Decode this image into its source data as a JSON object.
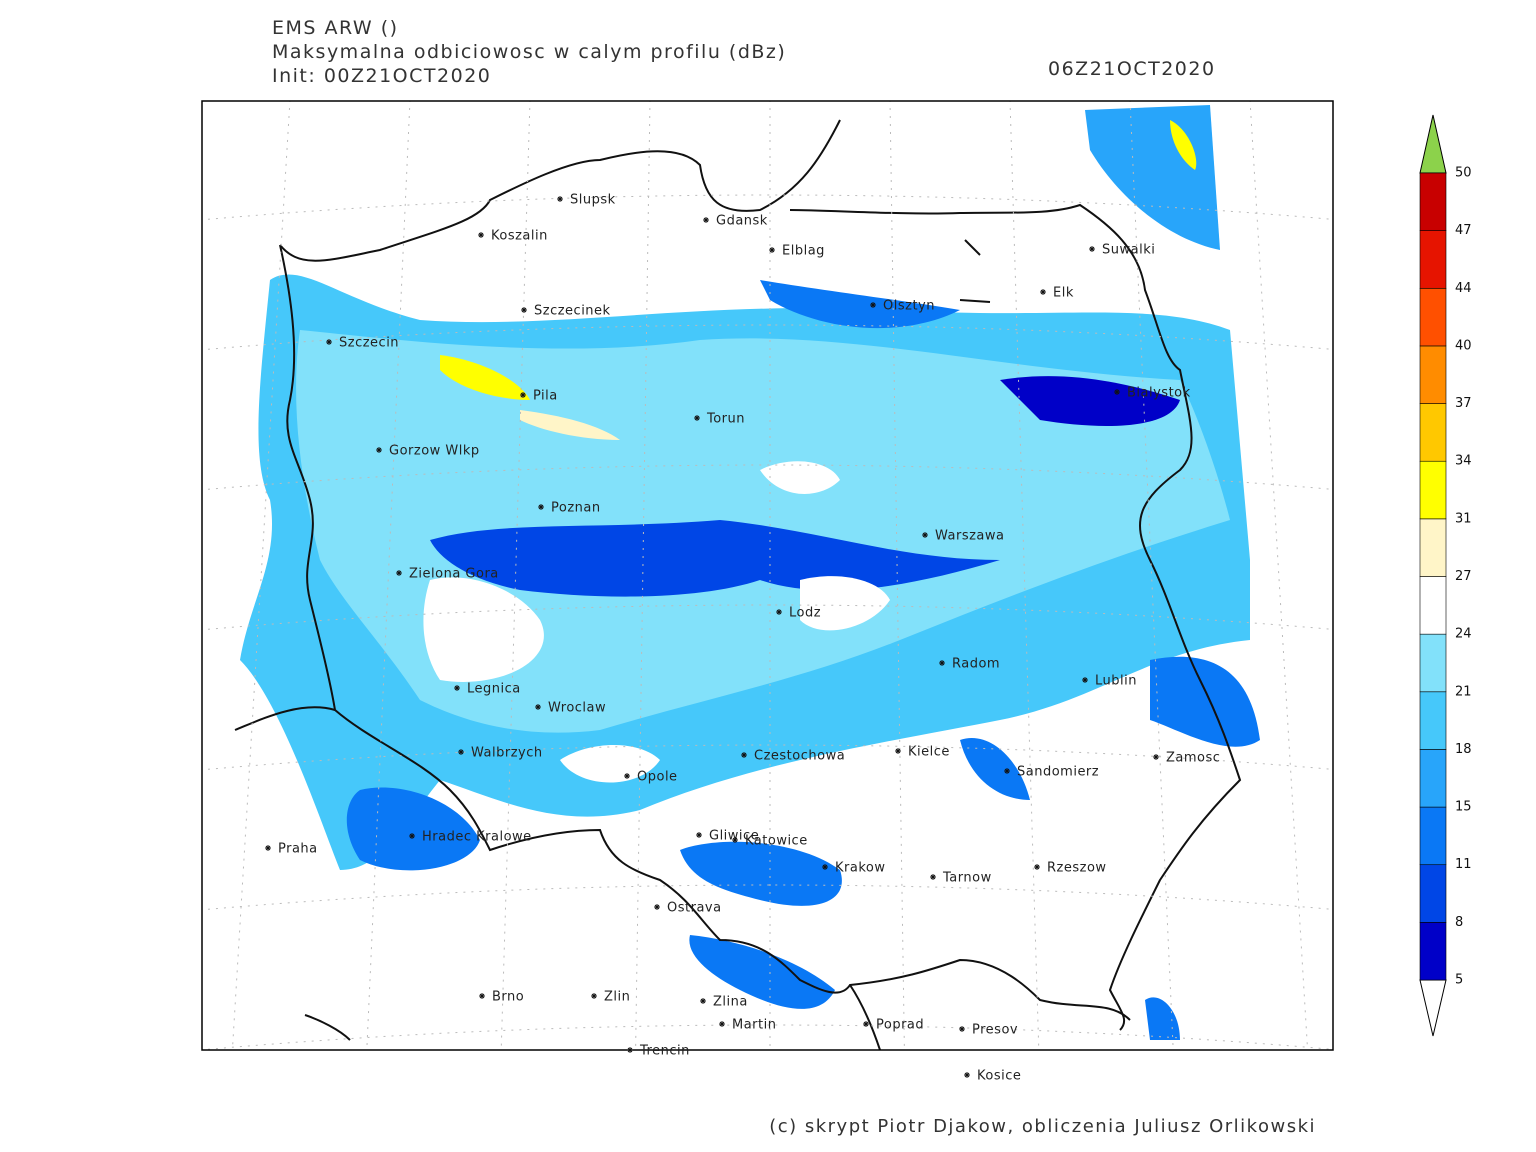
{
  "header": {
    "model": "EMS ARW ()",
    "title": "Maksymalna odbiciowosc w calym profilu (dBz)",
    "init": "Init: 00Z21OCT2020",
    "valid": "06Z21OCT2020"
  },
  "cities": [
    "Slupsk",
    "Koszalin",
    "Gdansk",
    "Elblag",
    "Suwalki",
    "Olsztyn",
    "Elk",
    "Szczecinek",
    "Szczecin",
    "Pila",
    "Torun",
    "Bialystok",
    "Gorzow Wlkp",
    "Poznan",
    "Warszawa",
    "Zielona Gora",
    "Lodz",
    "Radom",
    "Lublin",
    "Legnica",
    "Wroclaw",
    "Walbrzych",
    "Czestochowa",
    "Kielce",
    "Zamosc",
    "Sandomierz",
    "Opole",
    "Praha",
    "Hradec Kralowe",
    "Gliwice",
    "Katowice",
    "Krakow",
    "Tarnow",
    "Rzeszow",
    "Ostrava",
    "Brno",
    "Zlin",
    "Zlina",
    "Martin",
    "Poprad",
    "Presov",
    "Trencin",
    "Kosice"
  ],
  "colorbar": {
    "levels": [
      5,
      8,
      11,
      15,
      18,
      21,
      24,
      27,
      31,
      34,
      37,
      40,
      44,
      47,
      50
    ],
    "colors": [
      "#0000c8",
      "#0046e6",
      "#0a78f5",
      "#28a5fa",
      "#46c8fa",
      "#82e1fa",
      "#ffffff",
      "#fff5c8",
      "#ffff00",
      "#ffc800",
      "#ff8c00",
      "#ff5000",
      "#e61400",
      "#c80000"
    ],
    "under_color": "#ffffff",
    "over_color": "#8cd24b"
  },
  "footer": "(c) skrypt Piotr Djakow, obliczenia Juliusz Orlikowski"
}
